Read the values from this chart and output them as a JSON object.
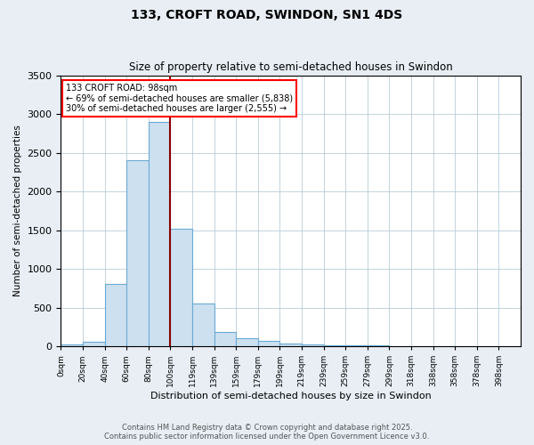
{
  "title1": "133, CROFT ROAD, SWINDON, SN1 4DS",
  "title2": "Size of property relative to semi-detached houses in Swindon",
  "xlabel": "Distribution of semi-detached houses by size in Swindon",
  "ylabel": "Number of semi-detached properties",
  "bar_labels": [
    "0sqm",
    "20sqm",
    "40sqm",
    "60sqm",
    "80sqm",
    "100sqm",
    "119sqm",
    "139sqm",
    "159sqm",
    "179sqm",
    "199sqm",
    "219sqm",
    "239sqm",
    "259sqm",
    "279sqm",
    "299sqm",
    "318sqm",
    "338sqm",
    "358sqm",
    "378sqm",
    "398sqm"
  ],
  "bar_values": [
    20,
    60,
    800,
    2400,
    2900,
    1520,
    550,
    190,
    100,
    65,
    40,
    20,
    15,
    10,
    8,
    5,
    3,
    2,
    1,
    1,
    1
  ],
  "bar_color": "#cce0f0",
  "bar_edge_color": "#6aaad4",
  "marker_color": "#8b0000",
  "annotation_title": "133 CROFT ROAD: 98sqm",
  "annotation_line2": "← 69% of semi-detached houses are smaller (5,838)",
  "annotation_line3": "30% of semi-detached houses are larger (2,555) →",
  "ylim": [
    0,
    3500
  ],
  "yticks": [
    0,
    500,
    1000,
    1500,
    2000,
    2500,
    3000,
    3500
  ],
  "footer1": "Contains HM Land Registry data © Crown copyright and database right 2025.",
  "footer2": "Contains public sector information licensed under the Open Government Licence v3.0.",
  "bg_color": "#e8eef4",
  "plot_bg_color": "#ffffff",
  "grid_color": "#b8ccd8"
}
